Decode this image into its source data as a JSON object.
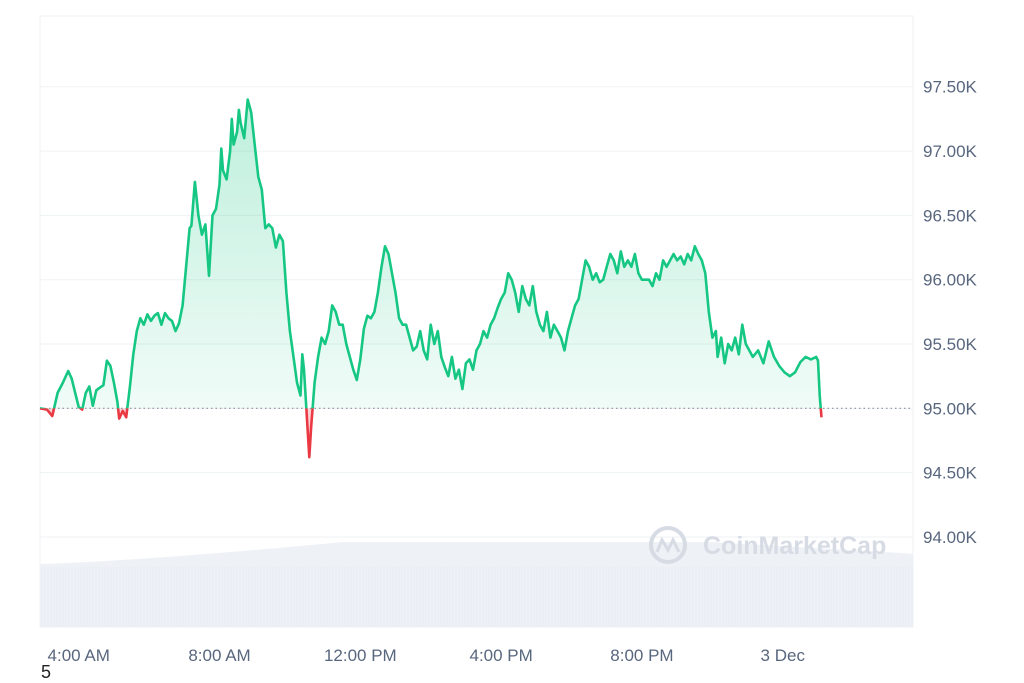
{
  "chart_data": {
    "type": "area",
    "title": "",
    "xlabel": "",
    "ylabel": "",
    "ylim": [
      93300,
      98050
    ],
    "baseline": 95000,
    "grid": true,
    "legend": "none",
    "colors": {
      "up": "#16c784",
      "down": "#ea3943",
      "volume": "#eef1f6",
      "grid": "#eff2f5",
      "text": "#58667e"
    },
    "x_ticks": [
      {
        "t": 4,
        "label": "4:00 AM"
      },
      {
        "t": 8,
        "label": "8:00 AM"
      },
      {
        "t": 12,
        "label": "12:00 PM"
      },
      {
        "t": 16,
        "label": "4:00 PM"
      },
      {
        "t": 20,
        "label": "8:00 PM"
      },
      {
        "t": 24,
        "label": "3 Dec"
      }
    ],
    "y_ticks": [
      {
        "v": 97500,
        "label": "97.50K"
      },
      {
        "v": 97000,
        "label": "97.00K"
      },
      {
        "v": 96500,
        "label": "96.50K"
      },
      {
        "v": 96000,
        "label": "96.00K"
      },
      {
        "v": 95500,
        "label": "95.50K"
      },
      {
        "v": 95000,
        "label": "95.00K"
      },
      {
        "v": 94500,
        "label": "94.50K"
      },
      {
        "v": 94000,
        "label": "94.00K"
      }
    ],
    "x_range": [
      2.9,
      27.7
    ],
    "series": [
      {
        "values": [
          [
            2.9,
            95000
          ],
          [
            3.1,
            94990
          ],
          [
            3.25,
            94940
          ],
          [
            3.4,
            95120
          ],
          [
            3.55,
            95200
          ],
          [
            3.7,
            95290
          ],
          [
            3.8,
            95230
          ],
          [
            3.9,
            95120
          ],
          [
            4.0,
            95010
          ],
          [
            4.1,
            94990
          ],
          [
            4.2,
            95120
          ],
          [
            4.3,
            95170
          ],
          [
            4.4,
            95020
          ],
          [
            4.5,
            95140
          ],
          [
            4.6,
            95160
          ],
          [
            4.7,
            95180
          ],
          [
            4.8,
            95370
          ],
          [
            4.9,
            95330
          ],
          [
            5.0,
            95200
          ],
          [
            5.1,
            95050
          ],
          [
            5.15,
            94920
          ],
          [
            5.25,
            94980
          ],
          [
            5.35,
            94930
          ],
          [
            5.45,
            95160
          ],
          [
            5.55,
            95420
          ],
          [
            5.65,
            95600
          ],
          [
            5.75,
            95700
          ],
          [
            5.85,
            95650
          ],
          [
            5.95,
            95730
          ],
          [
            6.05,
            95680
          ],
          [
            6.15,
            95720
          ],
          [
            6.25,
            95740
          ],
          [
            6.35,
            95650
          ],
          [
            6.45,
            95740
          ],
          [
            6.55,
            95700
          ],
          [
            6.65,
            95680
          ],
          [
            6.75,
            95600
          ],
          [
            6.85,
            95660
          ],
          [
            6.95,
            95800
          ],
          [
            7.05,
            96100
          ],
          [
            7.15,
            96400
          ],
          [
            7.2,
            96420
          ],
          [
            7.3,
            96760
          ],
          [
            7.4,
            96500
          ],
          [
            7.5,
            96350
          ],
          [
            7.6,
            96430
          ],
          [
            7.7,
            96030
          ],
          [
            7.8,
            96500
          ],
          [
            7.9,
            96550
          ],
          [
            8.0,
            96740
          ],
          [
            8.05,
            97020
          ],
          [
            8.1,
            96850
          ],
          [
            8.2,
            96780
          ],
          [
            8.3,
            97000
          ],
          [
            8.35,
            97250
          ],
          [
            8.4,
            97050
          ],
          [
            8.5,
            97150
          ],
          [
            8.55,
            97320
          ],
          [
            8.6,
            97220
          ],
          [
            8.7,
            97100
          ],
          [
            8.8,
            97400
          ],
          [
            8.9,
            97300
          ],
          [
            9.0,
            97050
          ],
          [
            9.1,
            96800
          ],
          [
            9.2,
            96700
          ],
          [
            9.3,
            96400
          ],
          [
            9.4,
            96430
          ],
          [
            9.5,
            96400
          ],
          [
            9.6,
            96250
          ],
          [
            9.7,
            96350
          ],
          [
            9.8,
            96300
          ],
          [
            9.9,
            95900
          ],
          [
            10.0,
            95600
          ],
          [
            10.1,
            95400
          ],
          [
            10.2,
            95200
          ],
          [
            10.3,
            95100
          ],
          [
            10.35,
            95420
          ],
          [
            10.4,
            95300
          ],
          [
            10.5,
            94850
          ],
          [
            10.55,
            94620
          ],
          [
            10.6,
            94850
          ],
          [
            10.7,
            95200
          ],
          [
            10.8,
            95400
          ],
          [
            10.9,
            95550
          ],
          [
            11.0,
            95500
          ],
          [
            11.1,
            95600
          ],
          [
            11.2,
            95800
          ],
          [
            11.3,
            95750
          ],
          [
            11.4,
            95650
          ],
          [
            11.5,
            95650
          ],
          [
            11.6,
            95500
          ],
          [
            11.7,
            95400
          ],
          [
            11.8,
            95300
          ],
          [
            11.9,
            95220
          ],
          [
            12.0,
            95380
          ],
          [
            12.1,
            95620
          ],
          [
            12.2,
            95720
          ],
          [
            12.3,
            95700
          ],
          [
            12.4,
            95750
          ],
          [
            12.5,
            95900
          ],
          [
            12.6,
            96100
          ],
          [
            12.7,
            96260
          ],
          [
            12.8,
            96200
          ],
          [
            12.9,
            96050
          ],
          [
            13.0,
            95900
          ],
          [
            13.1,
            95700
          ],
          [
            13.2,
            95650
          ],
          [
            13.3,
            95650
          ],
          [
            13.4,
            95550
          ],
          [
            13.5,
            95450
          ],
          [
            13.6,
            95480
          ],
          [
            13.7,
            95600
          ],
          [
            13.8,
            95450
          ],
          [
            13.9,
            95380
          ],
          [
            14.0,
            95650
          ],
          [
            14.1,
            95500
          ],
          [
            14.2,
            95600
          ],
          [
            14.3,
            95400
          ],
          [
            14.4,
            95320
          ],
          [
            14.5,
            95250
          ],
          [
            14.6,
            95400
          ],
          [
            14.7,
            95230
          ],
          [
            14.8,
            95300
          ],
          [
            14.9,
            95150
          ],
          [
            15.0,
            95350
          ],
          [
            15.1,
            95380
          ],
          [
            15.2,
            95300
          ],
          [
            15.3,
            95450
          ],
          [
            15.4,
            95500
          ],
          [
            15.5,
            95600
          ],
          [
            15.6,
            95550
          ],
          [
            15.7,
            95650
          ],
          [
            15.8,
            95700
          ],
          [
            15.9,
            95780
          ],
          [
            16.0,
            95850
          ],
          [
            16.1,
            95900
          ],
          [
            16.2,
            96050
          ],
          [
            16.3,
            96000
          ],
          [
            16.4,
            95900
          ],
          [
            16.5,
            95750
          ],
          [
            16.6,
            95950
          ],
          [
            16.7,
            95850
          ],
          [
            16.8,
            95800
          ],
          [
            16.9,
            95950
          ],
          [
            17.0,
            95750
          ],
          [
            17.1,
            95650
          ],
          [
            17.2,
            95600
          ],
          [
            17.3,
            95750
          ],
          [
            17.4,
            95550
          ],
          [
            17.5,
            95650
          ],
          [
            17.6,
            95600
          ],
          [
            17.7,
            95550
          ],
          [
            17.8,
            95450
          ],
          [
            17.9,
            95600
          ],
          [
            18.0,
            95700
          ],
          [
            18.1,
            95800
          ],
          [
            18.2,
            95850
          ],
          [
            18.3,
            96000
          ],
          [
            18.4,
            96150
          ],
          [
            18.5,
            96100
          ],
          [
            18.6,
            96000
          ],
          [
            18.7,
            96050
          ],
          [
            18.8,
            95980
          ],
          [
            18.9,
            96000
          ],
          [
            19.0,
            96100
          ],
          [
            19.1,
            96200
          ],
          [
            19.2,
            96150
          ],
          [
            19.3,
            96050
          ],
          [
            19.4,
            96220
          ],
          [
            19.5,
            96100
          ],
          [
            19.6,
            96150
          ],
          [
            19.7,
            96100
          ],
          [
            19.8,
            96200
          ],
          [
            19.9,
            96050
          ],
          [
            20.0,
            96000
          ],
          [
            20.1,
            96000
          ],
          [
            20.2,
            96000
          ],
          [
            20.3,
            95950
          ],
          [
            20.4,
            96050
          ],
          [
            20.5,
            96000
          ],
          [
            20.6,
            96150
          ],
          [
            20.7,
            96100
          ],
          [
            20.8,
            96150
          ],
          [
            20.9,
            96200
          ],
          [
            21.0,
            96150
          ],
          [
            21.1,
            96180
          ],
          [
            21.2,
            96120
          ],
          [
            21.3,
            96200
          ],
          [
            21.4,
            96150
          ],
          [
            21.5,
            96260
          ],
          [
            21.6,
            96200
          ],
          [
            21.7,
            96150
          ],
          [
            21.8,
            96050
          ],
          [
            21.9,
            95750
          ],
          [
            22.0,
            95550
          ],
          [
            22.1,
            95600
          ],
          [
            22.15,
            95400
          ],
          [
            22.25,
            95550
          ],
          [
            22.35,
            95350
          ],
          [
            22.45,
            95500
          ],
          [
            22.55,
            95450
          ],
          [
            22.65,
            95550
          ],
          [
            22.75,
            95420
          ],
          [
            22.85,
            95650
          ],
          [
            22.95,
            95500
          ],
          [
            23.05,
            95450
          ],
          [
            23.15,
            95400
          ],
          [
            23.3,
            95450
          ],
          [
            23.45,
            95350
          ],
          [
            23.6,
            95520
          ],
          [
            23.75,
            95400
          ],
          [
            23.9,
            95330
          ],
          [
            24.05,
            95280
          ],
          [
            24.2,
            95250
          ],
          [
            24.35,
            95280
          ],
          [
            24.5,
            95360
          ],
          [
            24.65,
            95400
          ],
          [
            24.8,
            95380
          ],
          [
            24.95,
            95400
          ],
          [
            25.0,
            95370
          ],
          [
            25.05,
            95100
          ],
          [
            25.1,
            94930
          ]
        ]
      }
    ],
    "volume": {
      "start": 93790,
      "plateau": 93960,
      "end": 93870
    },
    "watermark": "CoinMarketCap",
    "corner_label": "5"
  }
}
